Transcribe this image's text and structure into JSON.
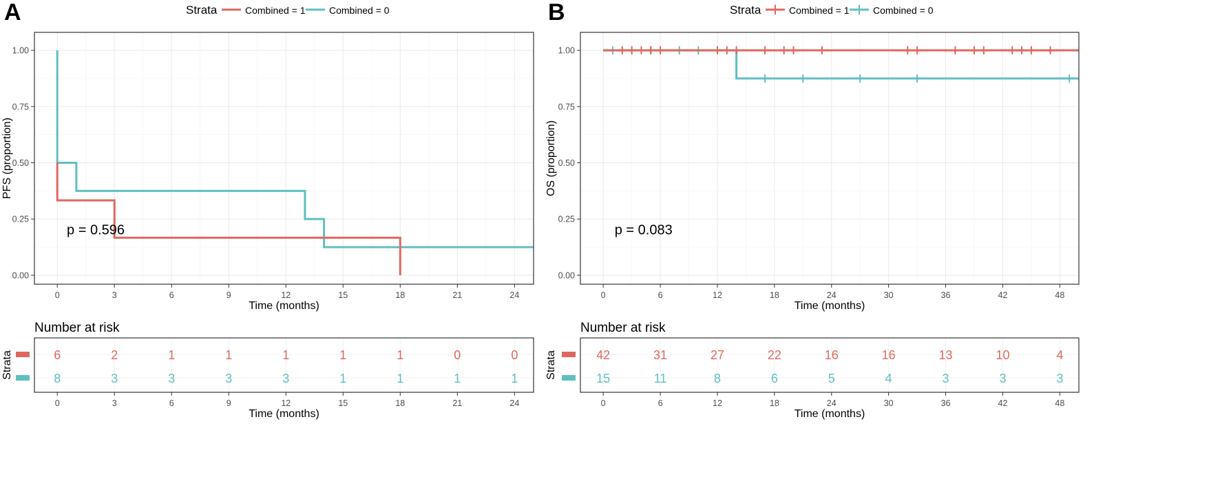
{
  "colors": {
    "combined_1": "#E0675E",
    "combined_0": "#5FBFC1"
  },
  "chart_data": [
    {
      "panel_label": "A",
      "type": "line",
      "step": true,
      "legend": {
        "title": "Strata",
        "placement": "top",
        "entries": [
          "Combined = 1",
          "Combined = 0"
        ]
      },
      "xlabel": "Time (months)",
      "ylabel": "PFS (proportion)",
      "xlim": [
        -1.2,
        25
      ],
      "ylim": [
        -0.04,
        1.08
      ],
      "xticks": [
        0,
        3,
        6,
        9,
        12,
        15,
        18,
        21,
        24
      ],
      "yticks": [
        0,
        0.25,
        0.5,
        0.75,
        1.0
      ],
      "ytick_labels": [
        "0.00",
        "0.25",
        "0.50",
        "0.75",
        "1.00"
      ],
      "grid": true,
      "annotation": "p = 0.596",
      "annotation_pos": [
        0.5,
        0.2
      ],
      "series": [
        {
          "name": "Combined = 1",
          "color_key": "combined_1",
          "x": [
            0,
            0,
            3,
            18,
            18
          ],
          "y": [
            0.5,
            0.333,
            0.167,
            0.167,
            0.0
          ],
          "censor_x": []
        },
        {
          "name": "Combined = 0",
          "color_key": "combined_0",
          "x": [
            0,
            0,
            1,
            13,
            14,
            25
          ],
          "y": [
            1.0,
            0.5,
            0.375,
            0.25,
            0.125,
            0.125
          ],
          "censor_x": []
        }
      ],
      "risk_table": {
        "title": "Number at risk",
        "strata_label": "Strata",
        "times": [
          0,
          3,
          6,
          9,
          12,
          15,
          18,
          21,
          24
        ],
        "rows": [
          {
            "color_key": "combined_1",
            "values": [
              "6",
              "2",
              "1",
              "1",
              "1",
              "1",
              "1",
              "0",
              "0"
            ]
          },
          {
            "color_key": "combined_0",
            "values": [
              "8",
              "3",
              "3",
              "3",
              "3",
              "1",
              "1",
              "1",
              "1"
            ]
          }
        ],
        "xlabel": "Time (months)"
      }
    },
    {
      "panel_label": "B",
      "type": "line",
      "step": true,
      "legend": {
        "title": "Strata",
        "placement": "top",
        "entries": [
          "Combined = 1",
          "Combined = 0"
        ]
      },
      "xlabel": "Time (months)",
      "ylabel": "OS (proportion)",
      "xlim": [
        -2.4,
        50
      ],
      "ylim": [
        -0.04,
        1.08
      ],
      "xticks": [
        0,
        6,
        12,
        18,
        24,
        30,
        36,
        42,
        48
      ],
      "yticks": [
        0,
        0.25,
        0.5,
        0.75,
        1.0
      ],
      "ytick_labels": [
        "0.00",
        "0.25",
        "0.50",
        "0.75",
        "1.00"
      ],
      "grid": true,
      "annotation": "p = 0.083",
      "annotation_pos": [
        1.2,
        0.2
      ],
      "series": [
        {
          "name": "Combined = 1",
          "color_key": "combined_1",
          "x": [
            0,
            50
          ],
          "y": [
            1.0,
            1.0
          ],
          "censor_x": [
            2,
            3,
            4,
            5,
            6,
            12,
            13,
            14,
            17,
            19,
            20,
            23,
            32,
            33,
            37,
            39,
            40,
            43,
            44,
            45,
            47
          ]
        },
        {
          "name": "Combined = 0",
          "color_key": "combined_0",
          "x": [
            0,
            14,
            50
          ],
          "y": [
            1.0,
            0.875,
            0.875
          ],
          "censor_x": [
            1,
            3,
            5,
            8,
            10,
            17,
            21,
            27,
            33,
            49
          ]
        }
      ],
      "risk_table": {
        "title": "Number at risk",
        "strata_label": "Strata",
        "times": [
          0,
          6,
          12,
          18,
          24,
          30,
          36,
          42,
          48
        ],
        "rows": [
          {
            "color_key": "combined_1",
            "values": [
              "42",
              "31",
              "27",
              "22",
              "16",
              "16",
              "13",
              "10",
              "4"
            ]
          },
          {
            "color_key": "combined_0",
            "values": [
              "15",
              "11",
              "8",
              "6",
              "5",
              "4",
              "3",
              "3",
              "3"
            ]
          }
        ],
        "xlabel": "Time (months)"
      }
    }
  ]
}
